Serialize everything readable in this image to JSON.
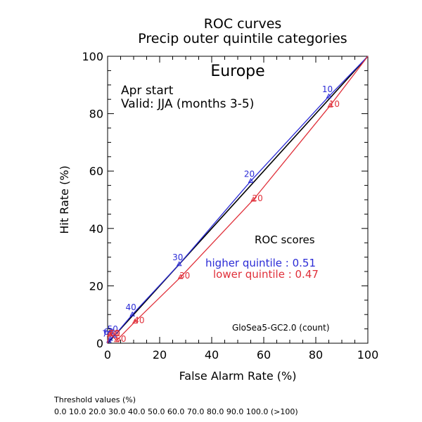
{
  "chart_data": {
    "type": "line",
    "title": "ROC curves",
    "subtitle": "Precip outer quintile categories",
    "region": "Europe",
    "start_text": "Apr start",
    "valid_text": "Valid: JJA (months 3-5)",
    "xlabel": "False Alarm Rate (%)",
    "ylabel": "Hit Rate (%)",
    "xlim": [
      0,
      100
    ],
    "ylim": [
      0,
      100
    ],
    "xticks": [
      "0",
      "20",
      "40",
      "60",
      "80",
      "100"
    ],
    "yticks": [
      "0",
      "20",
      "40",
      "60",
      "80",
      "100"
    ],
    "grid": false,
    "diagonal": true,
    "scores_title": "ROC scores",
    "model_label": "GloSea5-GC2.0 (count)",
    "series": [
      {
        "name": "higher quintile",
        "score_text": "higher quintile : 0.51",
        "color": "#2b2bd6",
        "x": [
          0,
          0.0,
          0.5,
          1.0,
          2.5,
          9.5,
          27.5,
          55.0,
          85.0,
          100
        ],
        "y": [
          0,
          0.3,
          0.8,
          1.5,
          2.5,
          10.0,
          27.5,
          56.5,
          86.0,
          100
        ],
        "labels": [
          "",
          "",
          "70",
          "60",
          "50",
          "40",
          "30",
          "20",
          "10",
          ""
        ]
      },
      {
        "name": "lower quintile",
        "score_text": "lower quintile : 0.47",
        "color": "#e0303a",
        "x": [
          0,
          0.3,
          0.7,
          1.2,
          3.5,
          10.5,
          28.0,
          56.0,
          85.5,
          100
        ],
        "y": [
          0,
          2.5,
          3.0,
          3.0,
          1.0,
          7.5,
          23.0,
          50.0,
          82.8,
          100
        ],
        "labels": [
          "",
          "",
          "70",
          "60",
          "50",
          "40",
          "30",
          "20",
          "10",
          ""
        ]
      }
    ]
  },
  "footer": {
    "threshold_title": "Threshold values (%)",
    "threshold_values": "0.0 10.0 20.0 30.0 40.0 50.0 60.0 70.0 80.0 90.0 100.0 (>100)"
  }
}
